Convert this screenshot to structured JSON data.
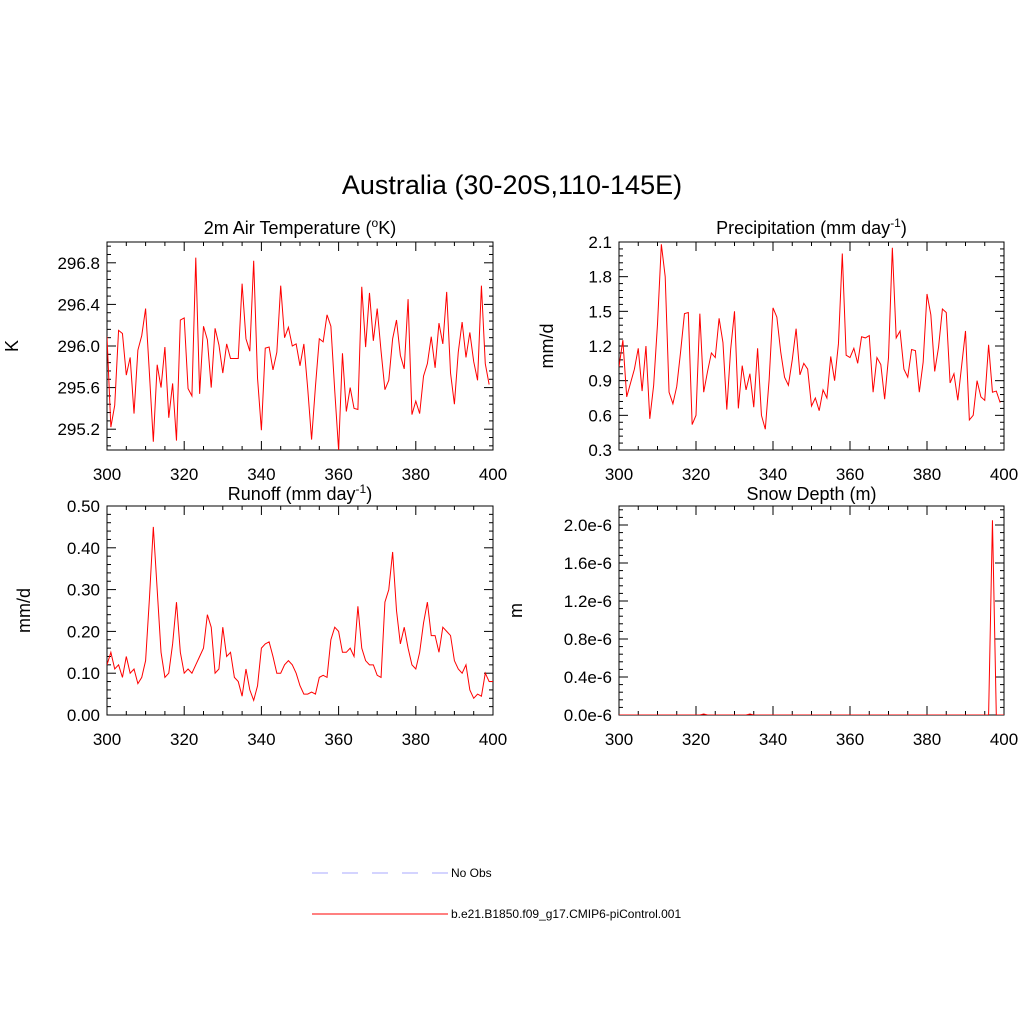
{
  "figure_title": "Australia (30-20S,110-145E)",
  "legend": {
    "items": [
      {
        "label": "No Obs",
        "color": "#aaaaff",
        "dash": "dashed"
      },
      {
        "label": "b.e21.B1850.f09_g17.CMIP6-piControl.001",
        "color": "#ff0000",
        "dash": "solid"
      }
    ]
  },
  "chart_data": [
    {
      "type": "line",
      "id": "temp",
      "title": "2m Air Temperature (",
      "title_sup": "o",
      "title_suffix": "K)",
      "ylabel": "K",
      "xlim": [
        300,
        400
      ],
      "ylim": [
        295.0,
        297.0
      ],
      "xticks": [
        300,
        320,
        340,
        360,
        380,
        400
      ],
      "yticks": [
        295.2,
        295.6,
        296.0,
        296.4,
        296.8
      ],
      "ytick_labels": [
        "295.2",
        "295.6",
        "296.0",
        "296.4",
        "296.8"
      ],
      "x_start": 300,
      "series": [
        {
          "name": "b.e21.B1850.f09_g17.CMIP6-piControl.001",
          "color": "#ff0000",
          "values": [
            296.09,
            295.22,
            295.43,
            296.15,
            296.12,
            295.72,
            295.89,
            295.35,
            295.96,
            296.1,
            296.36,
            295.73,
            295.08,
            295.82,
            295.6,
            295.99,
            295.31,
            295.64,
            295.09,
            296.25,
            296.27,
            295.59,
            295.52,
            296.85,
            295.54,
            296.19,
            296.06,
            295.6,
            296.17,
            296.01,
            295.74,
            296.02,
            295.88,
            295.88,
            295.88,
            296.6,
            296.07,
            295.95,
            296.82,
            295.69,
            295.19,
            295.98,
            295.99,
            295.77,
            295.94,
            296.58,
            296.08,
            296.18,
            296.0,
            296.02,
            295.81,
            296.02,
            295.59,
            295.1,
            295.61,
            296.07,
            296.04,
            296.3,
            296.19,
            295.57,
            295.0,
            295.93,
            295.37,
            295.6,
            295.4,
            295.39,
            296.57,
            295.99,
            296.51,
            296.05,
            296.36,
            295.95,
            295.58,
            295.67,
            296.07,
            296.25,
            295.91,
            295.78,
            296.45,
            295.34,
            295.47,
            295.35,
            295.71,
            295.83,
            296.09,
            295.79,
            296.22,
            296.02,
            296.52,
            295.74,
            295.44,
            295.94,
            296.23,
            295.89,
            296.13,
            295.85,
            295.67,
            296.58,
            295.83,
            295.63
          ]
        }
      ]
    },
    {
      "type": "line",
      "id": "precip",
      "title": "Precipitation (mm day",
      "title_sup": "-1",
      "title_suffix": ")",
      "ylabel": "mm/d",
      "xlim": [
        300,
        400
      ],
      "ylim": [
        0.3,
        2.1
      ],
      "xticks": [
        300,
        320,
        340,
        360,
        380,
        400
      ],
      "yticks": [
        0.3,
        0.6,
        0.9,
        1.2,
        1.5,
        1.8,
        2.1
      ],
      "ytick_labels": [
        "0.3",
        "0.6",
        "0.9",
        "1.2",
        "1.5",
        "1.8",
        "2.1"
      ],
      "x_start": 300,
      "series": [
        {
          "name": "b.e21.B1850.f09_g17.CMIP6-piControl.001",
          "color": "#ff0000",
          "values": [
            1.02,
            1.25,
            0.76,
            0.88,
            1.0,
            1.18,
            0.81,
            1.2,
            0.57,
            0.86,
            1.39,
            2.08,
            1.8,
            0.8,
            0.7,
            0.85,
            1.15,
            1.48,
            1.49,
            0.52,
            0.6,
            1.48,
            0.8,
            0.98,
            1.14,
            1.1,
            1.44,
            1.23,
            0.65,
            1.17,
            1.5,
            0.66,
            1.03,
            0.82,
            0.96,
            0.67,
            1.18,
            0.6,
            0.48,
            0.91,
            1.53,
            1.45,
            1.15,
            0.93,
            0.86,
            1.08,
            1.35,
            0.95,
            1.05,
            1.0,
            0.68,
            0.75,
            0.64,
            0.82,
            0.75,
            1.11,
            0.9,
            1.22,
            2.0,
            1.12,
            1.1,
            1.18,
            1.05,
            1.28,
            1.27,
            1.29,
            0.8,
            1.1,
            1.04,
            0.74,
            1.1,
            2.05,
            1.27,
            1.33,
            1.0,
            0.93,
            1.17,
            1.16,
            0.8,
            1.06,
            1.65,
            1.47,
            0.98,
            1.19,
            1.52,
            1.49,
            0.88,
            0.96,
            0.73,
            1.03,
            1.33,
            0.56,
            0.6,
            0.9,
            0.76,
            0.73,
            1.21,
            0.8,
            0.81,
            0.71
          ]
        }
      ]
    },
    {
      "type": "line",
      "id": "runoff",
      "title": "Runoff (mm day",
      "title_sup": "-1",
      "title_suffix": ")",
      "ylabel": "mm/d",
      "xlim": [
        300,
        400
      ],
      "ylim": [
        0.0,
        0.5
      ],
      "xticks": [
        300,
        320,
        340,
        360,
        380,
        400
      ],
      "yticks": [
        0.0,
        0.1,
        0.2,
        0.3,
        0.4,
        0.5
      ],
      "ytick_labels": [
        "0.00",
        "0.10",
        "0.20",
        "0.30",
        "0.40",
        "0.50"
      ],
      "x_start": 300,
      "series": [
        {
          "name": "b.e21.B1850.f09_g17.CMIP6-piControl.001",
          "color": "#ff0000",
          "values": [
            0.12,
            0.15,
            0.11,
            0.12,
            0.09,
            0.14,
            0.1,
            0.11,
            0.075,
            0.09,
            0.13,
            0.28,
            0.45,
            0.3,
            0.15,
            0.09,
            0.1,
            0.17,
            0.27,
            0.15,
            0.1,
            0.11,
            0.1,
            0.12,
            0.14,
            0.16,
            0.24,
            0.21,
            0.1,
            0.11,
            0.21,
            0.14,
            0.15,
            0.09,
            0.08,
            0.045,
            0.11,
            0.06,
            0.035,
            0.07,
            0.16,
            0.17,
            0.175,
            0.14,
            0.1,
            0.1,
            0.12,
            0.13,
            0.12,
            0.1,
            0.07,
            0.05,
            0.05,
            0.055,
            0.05,
            0.09,
            0.095,
            0.09,
            0.18,
            0.21,
            0.2,
            0.15,
            0.15,
            0.16,
            0.14,
            0.26,
            0.16,
            0.13,
            0.12,
            0.12,
            0.095,
            0.09,
            0.27,
            0.3,
            0.39,
            0.25,
            0.17,
            0.21,
            0.16,
            0.12,
            0.11,
            0.15,
            0.22,
            0.27,
            0.19,
            0.19,
            0.15,
            0.21,
            0.2,
            0.19,
            0.13,
            0.11,
            0.1,
            0.12,
            0.06,
            0.04,
            0.05,
            0.045,
            0.1,
            0.08,
            0.08
          ]
        }
      ]
    },
    {
      "type": "line",
      "id": "snow",
      "title": "Snow Depth (m)",
      "title_sup": "",
      "title_suffix": "",
      "ylabel": "m",
      "xlim": [
        300,
        400
      ],
      "ylim": [
        0.0,
        2.2
      ],
      "y_scale_note": "values in units of 1e-6 m",
      "xticks": [
        300,
        320,
        340,
        360,
        380,
        400
      ],
      "yticks": [
        0.0,
        0.4,
        0.8,
        1.2,
        1.6,
        2.0
      ],
      "ytick_labels": [
        "0.0e-6",
        "0.4e-6",
        "0.8e-6",
        "1.2e-6",
        "1.6e-6",
        "2.0e-6"
      ],
      "x_start": 300,
      "series": [
        {
          "name": "b.e21.B1850.f09_g17.CMIP6-piControl.001",
          "color": "#ff0000",
          "values": [
            0,
            0,
            0,
            0,
            0,
            0,
            0,
            0,
            0,
            0,
            0,
            0,
            0,
            0,
            0,
            0,
            0,
            0,
            0,
            0,
            0,
            0,
            0.01,
            0,
            0,
            0,
            0,
            0,
            0,
            0,
            0,
            0,
            0,
            0,
            0.01,
            0,
            0,
            0,
            0,
            0,
            0,
            0,
            0,
            0,
            0,
            0,
            0,
            0,
            0,
            0,
            0,
            0,
            0,
            0,
            0,
            0,
            0,
            0,
            0,
            0,
            0,
            0,
            0,
            0,
            0,
            0,
            0,
            0,
            0,
            0,
            0,
            0,
            0,
            0,
            0,
            0,
            0,
            0,
            0,
            0,
            0,
            0,
            0,
            0,
            0,
            0,
            0,
            0,
            0,
            0,
            0,
            0,
            0,
            0,
            0,
            0,
            0,
            2.05,
            0,
            0,
            0
          ]
        }
      ]
    }
  ]
}
